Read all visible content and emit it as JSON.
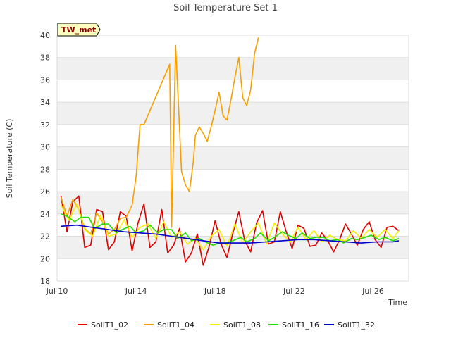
{
  "chart_data": {
    "type": "line",
    "title": "Soil Temperature Set 1",
    "xlabel": "Time",
    "ylabel": "Soil Temperature (C)",
    "badge": "TW_met",
    "ylim": [
      18,
      40
    ],
    "xlim_days": [
      10,
      27.8
    ],
    "x_ticks": [
      {
        "label": "Jul 10",
        "day": 10
      },
      {
        "label": "Jul 14",
        "day": 14
      },
      {
        "label": "Jul 18",
        "day": 18
      },
      {
        "label": "Jul 22",
        "day": 22
      },
      {
        "label": "Jul 26",
        "day": 26
      }
    ],
    "y_ticks": [
      18,
      20,
      22,
      24,
      26,
      28,
      30,
      32,
      34,
      36,
      38,
      40
    ],
    "grid": true,
    "legend_position": "bottom",
    "series": [
      {
        "name": "SoilT1_02",
        "color": "#dd0000",
        "x": [
          10.2,
          10.5,
          10.8,
          11.1,
          11.4,
          11.7,
          12.0,
          12.3,
          12.6,
          12.9,
          13.2,
          13.5,
          13.8,
          14.1,
          14.4,
          14.7,
          15.0,
          15.3,
          15.6,
          15.9,
          16.2,
          16.5,
          16.8,
          17.1,
          17.4,
          17.7,
          18.0,
          18.3,
          18.6,
          18.9,
          19.2,
          19.5,
          19.8,
          20.1,
          20.4,
          20.7,
          21.0,
          21.3,
          21.6,
          21.9,
          22.2,
          22.5,
          22.8,
          23.1,
          23.4,
          23.7,
          24.0,
          24.3,
          24.6,
          24.9,
          25.2,
          25.5,
          25.8,
          26.1,
          26.4,
          26.7,
          27.0,
          27.3
        ],
        "y": [
          25.6,
          22.4,
          25.1,
          25.6,
          21.0,
          21.2,
          24.4,
          24.2,
          20.8,
          21.5,
          24.2,
          23.8,
          20.7,
          23.2,
          24.9,
          21.0,
          21.5,
          24.4,
          20.5,
          21.2,
          22.7,
          19.7,
          20.5,
          22.2,
          19.4,
          21.1,
          23.4,
          21.3,
          20.1,
          22.3,
          24.2,
          21.6,
          20.6,
          23.2,
          24.3,
          21.3,
          21.5,
          24.2,
          22.4,
          20.9,
          23.0,
          22.7,
          21.1,
          21.2,
          22.3,
          21.6,
          20.6,
          21.7,
          23.1,
          22.2,
          21.2,
          22.6,
          23.3,
          21.7,
          21.0,
          22.8,
          22.9,
          22.5
        ]
      },
      {
        "name": "SoilT1_04",
        "color": "#f5a000",
        "x": [
          10.2,
          10.5,
          10.8,
          11.1,
          11.4,
          11.7,
          12.0,
          12.3,
          12.6,
          12.9,
          13.2,
          13.5,
          13.8,
          14.0,
          14.2,
          14.4,
          15.7,
          15.8,
          16.0,
          16.1,
          16.3,
          16.5,
          16.7,
          16.9,
          17.0,
          17.2,
          17.4,
          17.6,
          17.8,
          18.0,
          18.2,
          18.4,
          18.6,
          18.8,
          19.0,
          19.2,
          19.4,
          19.6,
          19.8,
          20.0,
          20.2
        ],
        "y": [
          25.5,
          23.8,
          25.3,
          24.4,
          22.7,
          22.2,
          24.1,
          23.3,
          22.2,
          22.6,
          23.6,
          23.7,
          24.8,
          27.3,
          32.0,
          32.0,
          37.4,
          22.8,
          39.1,
          35.4,
          27.8,
          26.6,
          26.0,
          28.7,
          31.0,
          31.8,
          31.2,
          30.5,
          31.8,
          33.3,
          34.9,
          32.8,
          32.4,
          34.2,
          36.2,
          38.0,
          34.4,
          33.7,
          35.1,
          38.4,
          39.8
        ]
      },
      {
        "name": "SoilT1_08",
        "color": "#f0f000",
        "x": [
          10.2,
          10.6,
          11.0,
          11.4,
          11.8,
          12.2,
          12.6,
          13.0,
          13.4,
          13.8,
          14.2,
          14.6,
          15.0,
          15.4,
          15.8,
          16.2,
          16.6,
          17.0,
          17.4,
          17.8,
          18.2,
          18.6,
          19.0,
          19.4,
          19.8,
          20.2,
          20.6,
          21.0,
          21.4,
          21.8,
          22.2,
          22.6,
          23.0,
          23.4,
          23.8,
          24.2,
          24.6,
          25.0,
          25.4,
          25.8,
          26.2,
          26.6,
          27.0,
          27.3
        ],
        "y": [
          24.8,
          23.4,
          24.9,
          22.6,
          22.0,
          23.9,
          22.0,
          22.2,
          23.5,
          21.9,
          22.8,
          23.1,
          21.8,
          23.3,
          21.9,
          22.4,
          21.3,
          21.8,
          20.8,
          22.0,
          22.6,
          21.1,
          23.1,
          21.4,
          22.4,
          23.2,
          21.3,
          23.2,
          22.2,
          21.5,
          22.8,
          21.7,
          22.5,
          21.5,
          22.1,
          21.7,
          21.6,
          22.5,
          21.8,
          22.6,
          21.9,
          22.6,
          21.8,
          22.5
        ]
      },
      {
        "name": "SoilT1_16",
        "color": "#22dd00",
        "x": [
          10.2,
          10.5,
          10.9,
          11.2,
          11.6,
          11.9,
          12.3,
          12.6,
          13.0,
          13.3,
          13.7,
          14.0,
          14.4,
          14.7,
          15.1,
          15.4,
          15.8,
          16.1,
          16.5,
          16.8,
          17.2,
          17.5,
          17.9,
          18.2,
          18.6,
          18.9,
          19.3,
          19.6,
          20.0,
          20.3,
          20.7,
          21.0,
          21.4,
          21.7,
          22.1,
          22.4,
          22.8,
          23.1,
          23.5,
          23.8,
          24.2,
          24.5,
          24.9,
          25.2,
          25.6,
          25.9,
          26.3,
          26.6,
          27.0,
          27.3
        ],
        "y": [
          24.0,
          23.8,
          23.3,
          23.7,
          23.7,
          22.7,
          23.1,
          23.1,
          22.3,
          22.6,
          22.9,
          22.3,
          22.5,
          23.0,
          22.3,
          22.6,
          22.6,
          21.8,
          22.3,
          21.6,
          21.8,
          21.5,
          21.2,
          21.4,
          21.4,
          21.6,
          21.9,
          21.5,
          21.8,
          22.3,
          21.6,
          21.9,
          22.4,
          22.1,
          21.8,
          22.3,
          21.8,
          21.9,
          21.9,
          21.6,
          21.7,
          21.4,
          21.8,
          21.7,
          21.9,
          22.1,
          21.7,
          21.9,
          21.6,
          21.8
        ]
      },
      {
        "name": "SoilT1_32",
        "color": "#0000cc",
        "x": [
          10.2,
          11.0,
          11.8,
          12.6,
          13.4,
          14.2,
          15.0,
          15.8,
          16.6,
          17.4,
          18.2,
          19.0,
          19.8,
          20.6,
          21.4,
          22.2,
          23.0,
          23.8,
          24.6,
          25.4,
          26.2,
          27.0,
          27.3
        ],
        "y": [
          22.9,
          23.0,
          22.8,
          22.6,
          22.4,
          22.3,
          22.2,
          22.0,
          21.8,
          21.6,
          21.4,
          21.4,
          21.4,
          21.5,
          21.6,
          21.7,
          21.7,
          21.6,
          21.5,
          21.4,
          21.5,
          21.5,
          21.6
        ]
      }
    ]
  }
}
